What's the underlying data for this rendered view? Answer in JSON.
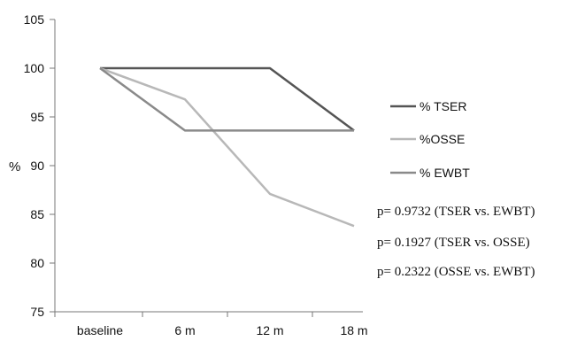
{
  "chart_data": {
    "type": "line",
    "categories": [
      "baseline",
      "6 m",
      "12 m",
      "18 m"
    ],
    "ylabel": "%",
    "ylim": [
      75,
      105
    ],
    "yticks": [
      75,
      80,
      85,
      90,
      95,
      100,
      105
    ],
    "grid": false,
    "legend_position": "right",
    "series": [
      {
        "name": "% TSER",
        "values": [
          100,
          100,
          100,
          93.6
        ],
        "color": "#555555"
      },
      {
        "name": "%OSSE",
        "values": [
          100,
          96.8,
          87.1,
          83.8
        ],
        "color": "#b8b8b8"
      },
      {
        "name": "% EWBT",
        "values": [
          100,
          93.6,
          93.6,
          93.6
        ],
        "color": "#8a8a8a"
      }
    ],
    "annotations": [
      "p= 0.9732 (TSER vs. EWBT)",
      "p= 0.1927 (TSER vs. OSSE)",
      "p= 0.2322 (OSSE vs. EWBT)"
    ]
  }
}
